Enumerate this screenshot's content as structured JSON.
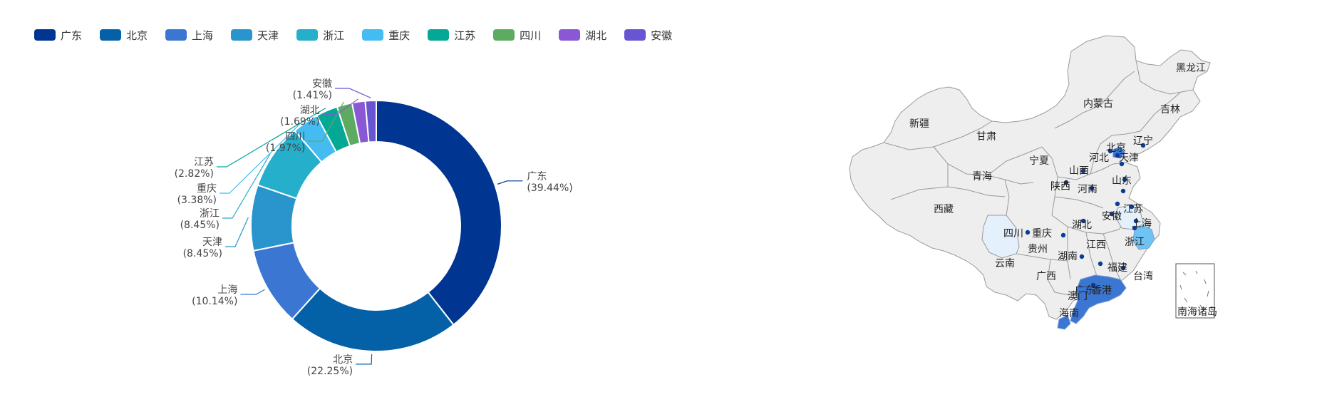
{
  "chart_data": [
    {
      "type": "pie",
      "variant": "donut",
      "legend_position": "top-left",
      "categories": [
        "广东",
        "北京",
        "上海",
        "天津",
        "浙江",
        "重庆",
        "江苏",
        "四川",
        "湖北",
        "安徽"
      ],
      "values": [
        39.44,
        22.25,
        10.14,
        8.45,
        8.45,
        3.38,
        2.82,
        1.97,
        1.69,
        1.41
      ],
      "labels": [
        "(39.44%)",
        "(22.25%)",
        "(10.14%)",
        "(8.45%)",
        "(8.45%)",
        "(3.38%)",
        "(2.82%)",
        "(1.97%)",
        "(1.69%)",
        "(1.41%)"
      ],
      "colors": [
        "#003591",
        "#0461a8",
        "#3b76d3",
        "#2995cc",
        "#25afcb",
        "#44bbf1",
        "#05a795",
        "#5dab63",
        "#8a58d4",
        "#6755d2"
      ]
    },
    {
      "type": "map",
      "region": "China provinces",
      "highlighted": [
        {
          "name": "广东",
          "color": "#3b76d3"
        },
        {
          "name": "上海",
          "color": "#6fc3f2"
        },
        {
          "name": "北京",
          "color": "#3b76d3"
        }
      ],
      "province_labels": [
        "黑龙江",
        "吉林",
        "辽宁",
        "内蒙古",
        "新疆",
        "甘肃",
        "宁夏",
        "青海",
        "西藏",
        "北京",
        "天津",
        "河北",
        "山西",
        "陕西",
        "河南",
        "山东",
        "江苏",
        "安徽",
        "上海",
        "浙江",
        "湖北",
        "四川",
        "重庆",
        "贵州",
        "湖南",
        "江西",
        "福建",
        "云南",
        "广西",
        "广东",
        "香港",
        "澳门",
        "台湾",
        "海南",
        "南海诸岛"
      ]
    }
  ]
}
